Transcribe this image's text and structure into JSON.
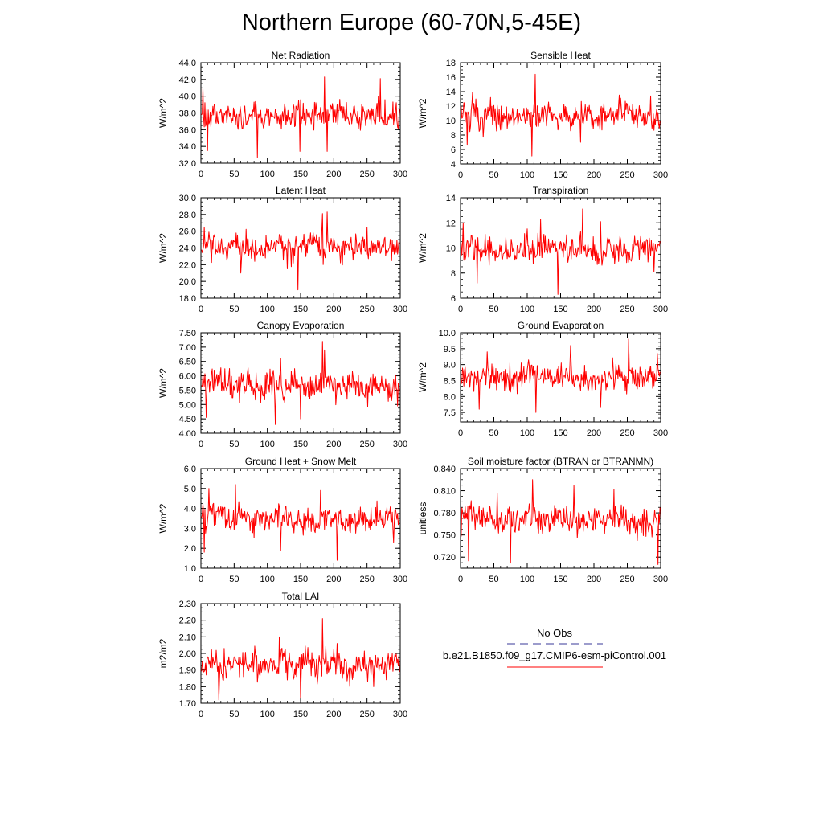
{
  "page": {
    "title": "Northern Europe (60-70N,5-45E)"
  },
  "legend": {
    "obs_label": "No Obs",
    "model_label": "b.e21.B1850.f09_g17.CMIP6-esm-piControl.001",
    "obs_color": "#3a3a9a",
    "model_color": "#ff0000"
  },
  "chart_data": [
    {
      "type": "line",
      "title": "Net Radiation",
      "ylabel": "W/m^2",
      "xlim": [
        0,
        300
      ],
      "ylim": [
        32.0,
        44.0
      ],
      "yticks": [
        "32.0",
        "34.0",
        "36.0",
        "38.0",
        "40.0",
        "42.0",
        "44.0"
      ],
      "xticks": [
        "0",
        "50",
        "100",
        "150",
        "200",
        "250",
        "300"
      ],
      "series": [
        {
          "color": "#ff0000",
          "x_start": 1,
          "x_end": 299,
          "mean": 37.8,
          "min": 32.7,
          "max": 42.3,
          "extremes": [
            [
              85,
              32.7
            ],
            [
              186,
              42.3
            ],
            [
              270,
              42.1
            ],
            [
              3,
              41.0
            ],
            [
              149,
              33.4
            ],
            [
              190,
              33.4
            ],
            [
              10,
              33.5
            ]
          ]
        }
      ]
    },
    {
      "type": "line",
      "title": "Sensible Heat",
      "ylabel": "W/m^2",
      "xlim": [
        0,
        300
      ],
      "ylim": [
        4,
        18
      ],
      "yticks": [
        "4",
        "6",
        "8",
        "10",
        "12",
        "14",
        "16",
        "18"
      ],
      "xticks": [
        "0",
        "50",
        "100",
        "150",
        "200",
        "250",
        "300"
      ],
      "series": [
        {
          "color": "#ff0000",
          "x_start": 1,
          "x_end": 299,
          "mean": 10.5,
          "min": 5.1,
          "max": 16.4,
          "extremes": [
            [
              112,
              16.4
            ],
            [
              107,
              5.1
            ],
            [
              10,
              6.6
            ],
            [
              285,
              13.4
            ],
            [
              18,
              13.9
            ],
            [
              240,
              13.1
            ],
            [
              180,
              7.0
            ]
          ]
        }
      ]
    },
    {
      "type": "line",
      "title": "Latent Heat",
      "ylabel": "W/m^2",
      "xlim": [
        0,
        300
      ],
      "ylim": [
        18.0,
        30.0
      ],
      "yticks": [
        "18.0",
        "20.0",
        "22.0",
        "24.0",
        "26.0",
        "28.0",
        "30.0"
      ],
      "xticks": [
        "0",
        "50",
        "100",
        "150",
        "200",
        "250",
        "300"
      ],
      "series": [
        {
          "color": "#ff0000",
          "x_start": 1,
          "x_end": 299,
          "mean": 24.2,
          "min": 19.0,
          "max": 28.3,
          "extremes": [
            [
              146,
              19.0
            ],
            [
              190,
              28.3
            ],
            [
              183,
              28.1
            ],
            [
              5,
              26.5
            ],
            [
              60,
              21.0
            ],
            [
              130,
              21.5
            ],
            [
              250,
              26.5
            ]
          ]
        }
      ]
    },
    {
      "type": "line",
      "title": "Transpiration",
      "ylabel": "W/m^2",
      "xlim": [
        0,
        300
      ],
      "ylim": [
        6,
        14
      ],
      "yticks": [
        "6",
        "8",
        "10",
        "12",
        "14"
      ],
      "xticks": [
        "0",
        "50",
        "100",
        "150",
        "200",
        "250",
        "300"
      ],
      "series": [
        {
          "color": "#ff0000",
          "x_start": 1,
          "x_end": 299,
          "mean": 9.9,
          "min": 6.3,
          "max": 13.1,
          "extremes": [
            [
              146,
              6.3
            ],
            [
              183,
              13.1
            ],
            [
              25,
              7.2
            ],
            [
              120,
              12.3
            ],
            [
              210,
              12.1
            ],
            [
              4,
              12.0
            ],
            [
              290,
              8.1
            ]
          ]
        }
      ]
    },
    {
      "type": "line",
      "title": "Canopy Evaporation",
      "ylabel": "W/m^2",
      "xlim": [
        0,
        300
      ],
      "ylim": [
        4.0,
        7.5
      ],
      "yticks": [
        "4.00",
        "4.50",
        "5.00",
        "5.50",
        "6.00",
        "6.50",
        "7.00",
        "7.50"
      ],
      "xticks": [
        "0",
        "50",
        "100",
        "150",
        "200",
        "250",
        "300"
      ],
      "series": [
        {
          "color": "#ff0000",
          "x_start": 1,
          "x_end": 299,
          "mean": 5.7,
          "min": 4.3,
          "max": 7.2,
          "extremes": [
            [
              183,
              7.2
            ],
            [
              112,
              4.3
            ],
            [
              8,
              4.55
            ],
            [
              150,
              4.5
            ],
            [
              186,
              6.9
            ],
            [
              296,
              4.95
            ],
            [
              120,
              6.6
            ]
          ]
        }
      ]
    },
    {
      "type": "line",
      "title": "Ground Evaporation",
      "ylabel": "W/m^2",
      "xlim": [
        0,
        300
      ],
      "ylim": [
        7.2,
        10.0
      ],
      "yticks": [
        "7.5",
        "8.0",
        "8.5",
        "9.0",
        "9.5",
        "10.0"
      ],
      "xticks": [
        "0",
        "50",
        "100",
        "150",
        "200",
        "250",
        "300"
      ],
      "series": [
        {
          "color": "#ff0000",
          "x_start": 1,
          "x_end": 299,
          "mean": 8.6,
          "min": 7.5,
          "max": 9.8,
          "extremes": [
            [
              252,
              9.8
            ],
            [
              28,
              7.6
            ],
            [
              113,
              7.5
            ],
            [
              210,
              7.65
            ],
            [
              165,
              9.6
            ],
            [
              40,
              9.4
            ],
            [
              295,
              9.35
            ]
          ]
        }
      ]
    },
    {
      "type": "line",
      "title": "Ground Heat + Snow Melt",
      "ylabel": "W/m^2",
      "xlim": [
        0,
        300
      ],
      "ylim": [
        1.0,
        6.0
      ],
      "yticks": [
        "1.0",
        "2.0",
        "3.0",
        "4.0",
        "5.0",
        "6.0"
      ],
      "xticks": [
        "0",
        "50",
        "100",
        "150",
        "200",
        "250",
        "300"
      ],
      "series": [
        {
          "color": "#ff0000",
          "x_start": 1,
          "x_end": 299,
          "mean": 3.5,
          "min": 1.4,
          "max": 5.2,
          "extremes": [
            [
              52,
              5.2
            ],
            [
              205,
              1.4
            ],
            [
              12,
              5.0
            ],
            [
              5,
              1.8
            ],
            [
              180,
              4.9
            ],
            [
              290,
              2.3
            ],
            [
              120,
              1.9
            ]
          ]
        }
      ]
    },
    {
      "type": "line",
      "title": "Soil moisture factor (BTRAN or BTRANMN)",
      "ylabel": "unitless",
      "xlim": [
        0,
        300
      ],
      "ylim": [
        0.705,
        0.84
      ],
      "yticks": [
        "0.720",
        "0.750",
        "0.780",
        "0.810",
        "0.840"
      ],
      "xticks": [
        "0",
        "50",
        "100",
        "150",
        "200",
        "250",
        "300"
      ],
      "series": [
        {
          "color": "#ff0000",
          "x_start": 1,
          "x_end": 299,
          "mean": 0.772,
          "min": 0.71,
          "max": 0.825,
          "extremes": [
            [
              108,
              0.825
            ],
            [
              296,
              0.71
            ],
            [
              12,
              0.715
            ],
            [
              170,
              0.817
            ],
            [
              75,
              0.712
            ],
            [
              55,
              0.807
            ],
            [
              230,
              0.812
            ]
          ]
        }
      ]
    },
    {
      "type": "line",
      "title": "Total LAI",
      "ylabel": "m2/m2",
      "xlim": [
        0,
        300
      ],
      "ylim": [
        1.7,
        2.3
      ],
      "yticks": [
        "1.70",
        "1.80",
        "1.90",
        "2.00",
        "2.10",
        "2.20",
        "2.30"
      ],
      "xticks": [
        "0",
        "50",
        "100",
        "150",
        "200",
        "250",
        "300"
      ],
      "series": [
        {
          "color": "#ff0000",
          "x_start": 1,
          "x_end": 299,
          "mean": 1.93,
          "min": 1.72,
          "max": 2.21,
          "extremes": [
            [
              183,
              2.21
            ],
            [
              27,
              1.72
            ],
            [
              150,
              1.73
            ],
            [
              118,
              2.1
            ],
            [
              205,
              2.06
            ],
            [
              35,
              2.03
            ],
            [
              260,
              1.8
            ]
          ]
        }
      ]
    }
  ]
}
